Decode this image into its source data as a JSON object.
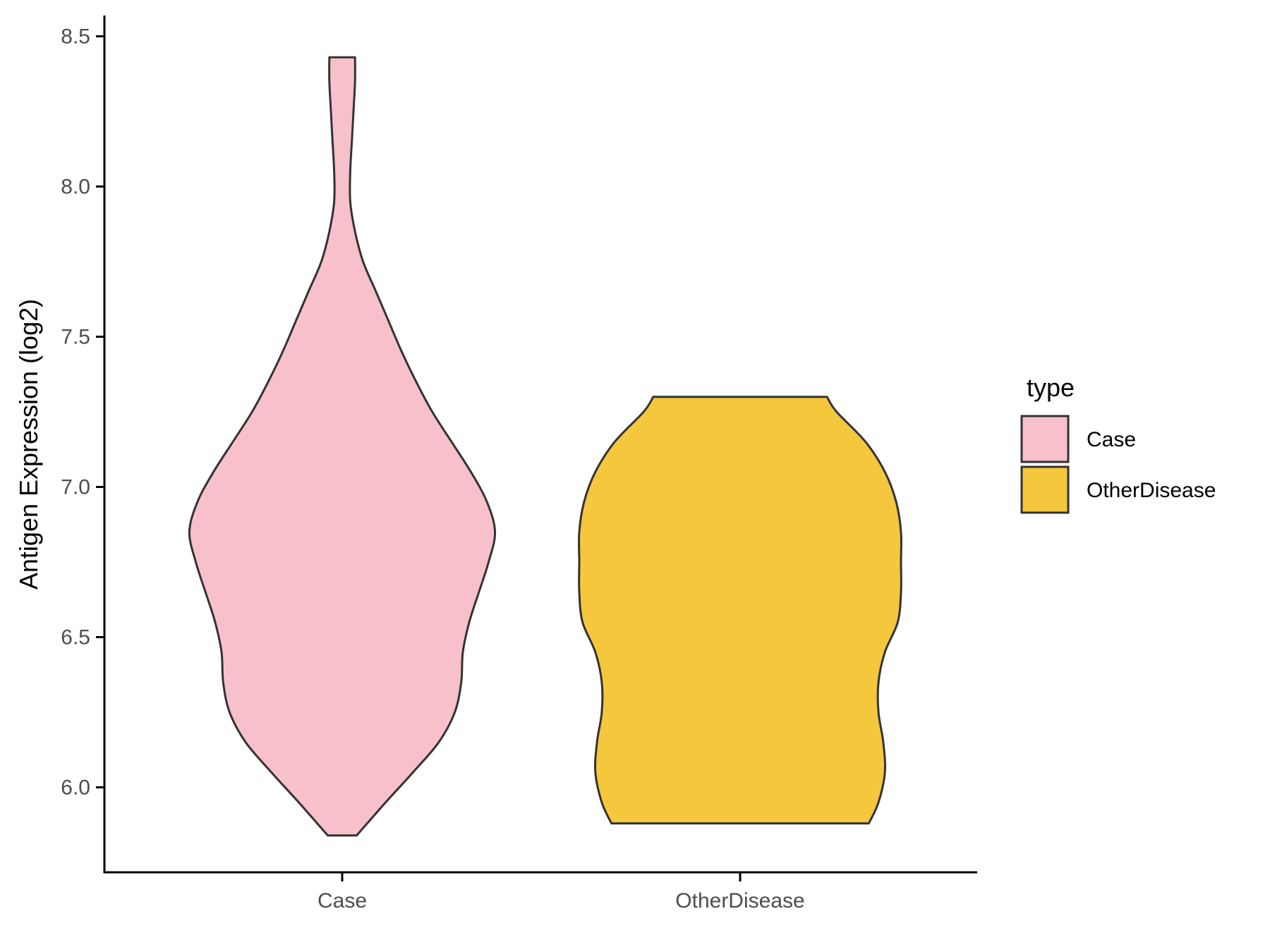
{
  "chart_data": {
    "type": "violin",
    "title": "",
    "xlabel": "",
    "ylabel": "Antigen Expression (log2)",
    "ylim": [
      5.7,
      8.57
    ],
    "yticks": [
      "6.0",
      "6.5",
      "7.0",
      "7.5",
      "8.0",
      "8.5"
    ],
    "categories": [
      "Case",
      "OtherDisease"
    ],
    "legend": {
      "title": "type",
      "entries": [
        "Case",
        "OtherDisease"
      ],
      "position": "right"
    },
    "colors": {
      "Case": "#F8C0CB",
      "OtherDisease": "#F5C73D",
      "outline": "#333333"
    },
    "grid": false,
    "series": [
      {
        "name": "Case",
        "min": 5.84,
        "max": 8.43,
        "profile": [
          [
            5.84,
            0.09
          ],
          [
            5.95,
            0.27
          ],
          [
            6.05,
            0.44
          ],
          [
            6.15,
            0.6
          ],
          [
            6.25,
            0.7
          ],
          [
            6.35,
            0.74
          ],
          [
            6.45,
            0.75
          ],
          [
            6.55,
            0.79
          ],
          [
            6.65,
            0.85
          ],
          [
            6.75,
            0.91
          ],
          [
            6.85,
            0.95
          ],
          [
            6.95,
            0.9
          ],
          [
            7.05,
            0.8
          ],
          [
            7.15,
            0.68
          ],
          [
            7.25,
            0.56
          ],
          [
            7.35,
            0.46
          ],
          [
            7.45,
            0.37
          ],
          [
            7.55,
            0.29
          ],
          [
            7.65,
            0.21
          ],
          [
            7.75,
            0.13
          ],
          [
            7.85,
            0.08
          ],
          [
            7.95,
            0.05
          ],
          [
            8.05,
            0.05
          ],
          [
            8.15,
            0.06
          ],
          [
            8.25,
            0.07
          ],
          [
            8.35,
            0.08
          ],
          [
            8.43,
            0.08
          ]
        ]
      },
      {
        "name": "OtherDisease",
        "min": 5.88,
        "max": 7.3,
        "profile": [
          [
            5.88,
            0.8
          ],
          [
            5.95,
            0.86
          ],
          [
            6.05,
            0.9
          ],
          [
            6.15,
            0.89
          ],
          [
            6.25,
            0.86
          ],
          [
            6.35,
            0.86
          ],
          [
            6.45,
            0.9
          ],
          [
            6.55,
            0.98
          ],
          [
            6.65,
            1.0
          ],
          [
            6.75,
            1.0
          ],
          [
            6.85,
            1.0
          ],
          [
            6.95,
            0.97
          ],
          [
            7.05,
            0.9
          ],
          [
            7.15,
            0.78
          ],
          [
            7.25,
            0.6
          ],
          [
            7.3,
            0.54
          ]
        ]
      }
    ]
  }
}
